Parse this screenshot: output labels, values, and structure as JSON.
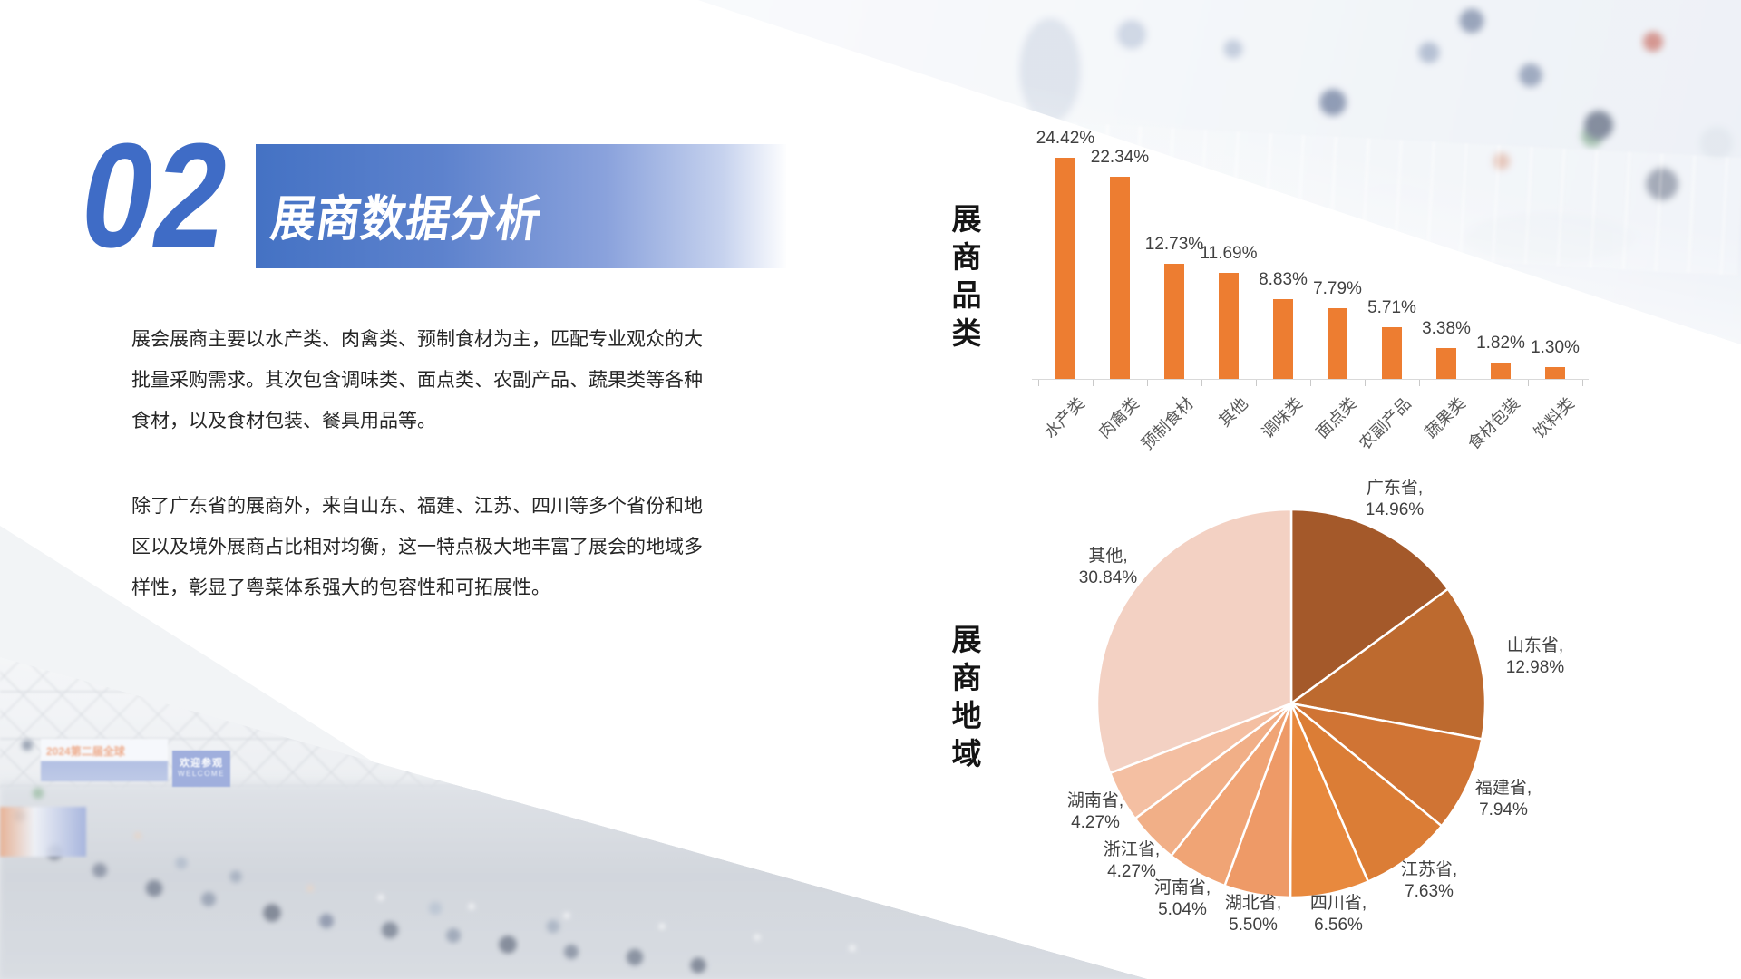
{
  "slide": {
    "section_number": "02",
    "section_title": "展商数据分析",
    "paragraph1_lines": [
      "展会展商主要以水产类、肉禽类、预制食材为主，匹配专业观众的大",
      "批量采购需求。其次包含调味类、面点类、农副产品、蔬果类等各种",
      "食材，以及食材包装、餐具用品等。"
    ],
    "paragraph2_lines": [
      "除了广东省的展商外，来自山东、福建、江苏、四川等多个省份和地",
      "区以及境外展商占比相对均衡，这一特点极大地丰富了展会的地域多",
      "样性，彰显了粤菜体系强大的包容性和可拓展性。"
    ]
  },
  "photos": {
    "bottom_left": {
      "banner_text": "2024第二届全球",
      "welcome_text": "欢迎参观",
      "welcome_subtext": "WELCOME"
    }
  },
  "colors": {
    "accent_blue": "#4472C4",
    "bar_orange": "#ED7D31"
  },
  "chart_data": [
    {
      "type": "bar",
      "title": "展商品类",
      "categories": [
        "水产类",
        "肉禽类",
        "预制食材",
        "其他",
        "调味类",
        "面点类",
        "农副产品",
        "蔬果类",
        "食材包装",
        "饮料类"
      ],
      "values": [
        24.42,
        22.34,
        12.73,
        11.69,
        8.83,
        7.79,
        5.71,
        3.38,
        1.82,
        1.3
      ],
      "value_labels": [
        "24.42%",
        "22.34%",
        "12.73%",
        "11.69%",
        "8.83%",
        "7.79%",
        "5.71%",
        "3.38%",
        "1.82%",
        "1.30%"
      ],
      "unit": "%",
      "bar_color": "#ED7D31",
      "ylim": [
        0,
        26
      ],
      "grid": false,
      "legend": "none"
    },
    {
      "type": "pie",
      "title": "展商地域",
      "labels": [
        "广东省",
        "山东省",
        "福建省",
        "江苏省",
        "四川省",
        "湖北省",
        "河南省",
        "浙江省",
        "湖南省",
        "其他"
      ],
      "values": [
        14.96,
        12.98,
        7.94,
        7.63,
        6.56,
        5.5,
        5.04,
        4.27,
        4.27,
        30.84
      ],
      "label_texts": [
        "广东省,\n14.96%",
        "山东省,\n12.98%",
        "福建省,\n7.94%",
        "江苏省,\n7.63%",
        "四川省,\n6.56%",
        "湖北省,\n5.50%",
        "河南省,\n5.04%",
        "浙江省,\n4.27%",
        "湖南省,\n4.27%",
        "其他,\n30.84%"
      ],
      "colors": [
        "#A4592A",
        "#BD6A2F",
        "#D07434",
        "#DB7D36",
        "#E8893E",
        "#EE9A67",
        "#F0A475",
        "#F1AF87",
        "#F4BFA2",
        "#F3D1C3"
      ],
      "start_angle_deg": 0,
      "direction": "clockwise",
      "slice_border_color": "#FFFFFF"
    }
  ]
}
